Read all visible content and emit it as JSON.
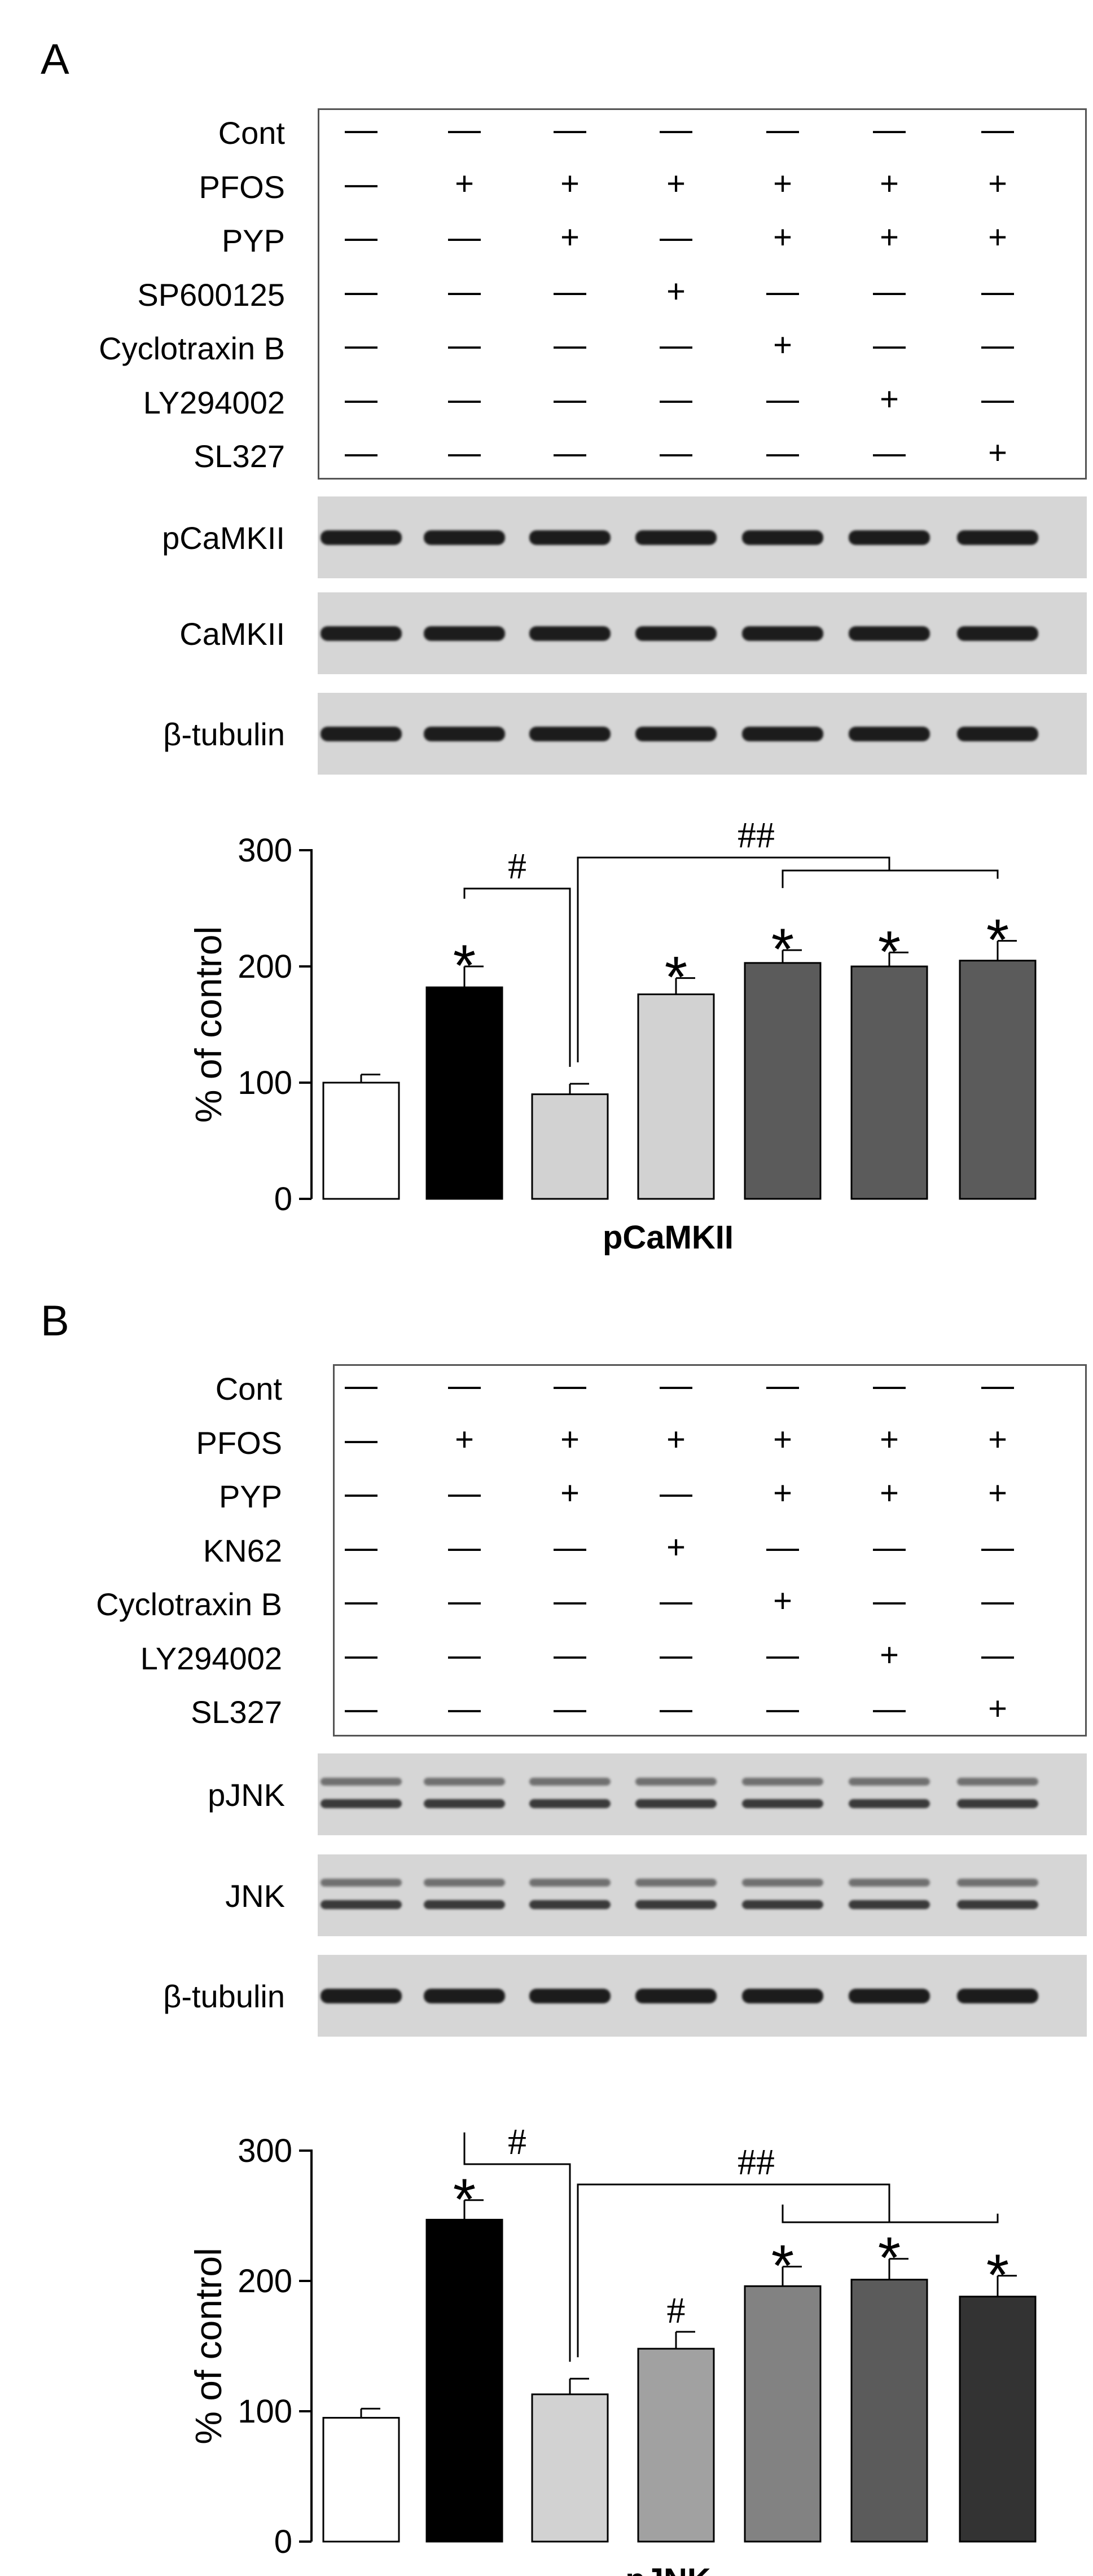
{
  "panels": [
    {
      "letter": "A",
      "conditions": [
        {
          "name": "Cont",
          "marks": [
            "—",
            "—",
            "—",
            "—",
            "—",
            "—",
            "—"
          ]
        },
        {
          "name": "PFOS",
          "marks": [
            "—",
            "+",
            "+",
            "+",
            "+",
            "+",
            "+"
          ]
        },
        {
          "name": "PYP",
          "marks": [
            "—",
            "—",
            "+",
            "—",
            "+",
            "+",
            "+"
          ]
        },
        {
          "name": "SP600125",
          "marks": [
            "—",
            "—",
            "—",
            "+",
            "—",
            "—",
            "—"
          ]
        },
        {
          "name": "Cyclotraxin B",
          "marks": [
            "—",
            "—",
            "—",
            "—",
            "+",
            "—",
            "—"
          ]
        },
        {
          "name": "LY294002",
          "marks": [
            "—",
            "—",
            "—",
            "—",
            "—",
            "+",
            "—"
          ]
        },
        {
          "name": "SL327",
          "marks": [
            "—",
            "—",
            "—",
            "—",
            "—",
            "—",
            "+"
          ]
        }
      ],
      "blots": [
        {
          "label": "pCaMKII",
          "bands": [
            1,
            1,
            1,
            1,
            1,
            1,
            1
          ]
        },
        {
          "label": "CaMKII",
          "bands": [
            1,
            1,
            1,
            1,
            1,
            1,
            1
          ]
        },
        {
          "label": "β-tubulin",
          "bands": [
            1,
            1,
            1,
            1,
            1,
            1,
            1
          ]
        }
      ]
    },
    {
      "letter": "B",
      "conditions": [
        {
          "name": "Cont",
          "marks": [
            "—",
            "—",
            "—",
            "—",
            "—",
            "—",
            "—"
          ]
        },
        {
          "name": "PFOS",
          "marks": [
            "—",
            "+",
            "+",
            "+",
            "+",
            "+",
            "+"
          ]
        },
        {
          "name": "PYP",
          "marks": [
            "—",
            "—",
            "+",
            "—",
            "+",
            "+",
            "+"
          ]
        },
        {
          "name": "KN62",
          "marks": [
            "—",
            "—",
            "—",
            "+",
            "—",
            "—",
            "—"
          ]
        },
        {
          "name": "Cyclotraxin B",
          "marks": [
            "—",
            "—",
            "—",
            "—",
            "+",
            "—",
            "—"
          ]
        },
        {
          "name": "LY294002",
          "marks": [
            "—",
            "—",
            "—",
            "—",
            "—",
            "+",
            "—"
          ]
        },
        {
          "name": "SL327",
          "marks": [
            "—",
            "—",
            "—",
            "—",
            "—",
            "—",
            "+"
          ]
        }
      ],
      "blots": [
        {
          "label": "pJNK",
          "bands": [
            2,
            2,
            2,
            2,
            2,
            2,
            2
          ]
        },
        {
          "label": "JNK",
          "bands": [
            2,
            2,
            2,
            2,
            2,
            2,
            2
          ]
        },
        {
          "label": "β-tubulin",
          "bands": [
            1,
            1,
            1,
            1,
            1,
            1,
            1
          ]
        }
      ]
    }
  ],
  "chart_data": [
    {
      "type": "bar",
      "title": "",
      "xlabel": "pCaMKII",
      "ylabel": "% of control",
      "ylim": [
        0,
        300
      ],
      "yticks": [
        0,
        100,
        200,
        300
      ],
      "categories": [
        "",
        "",
        "",
        "",
        "",
        "",
        ""
      ],
      "values": [
        100,
        182,
        90,
        176,
        203,
        200,
        205
      ],
      "errors": [
        7,
        18,
        9,
        14,
        11,
        12,
        17
      ],
      "bar_colors": [
        "#ffffff",
        "#000000",
        "#d2d2d2",
        "#d2d2d2",
        "#5b5b5b",
        "#5b5b5b",
        "#5b5b5b"
      ],
      "annotations": [
        "",
        "*",
        "",
        "*",
        "*",
        "*",
        "*"
      ],
      "brackets": [
        {
          "label": "#",
          "from": 1,
          "to": 2
        },
        {
          "label": "##",
          "from": 2,
          "to": 5
        },
        {
          "label": "",
          "from": 4,
          "to": 6
        }
      ]
    },
    {
      "type": "bar",
      "title": "",
      "xlabel": "pJNK",
      "ylabel": "% of control",
      "ylim": [
        0,
        300
      ],
      "yticks": [
        0,
        100,
        200,
        300
      ],
      "categories": [
        "",
        "",
        "",
        "",
        "",
        "",
        ""
      ],
      "values": [
        95,
        247,
        113,
        148,
        196,
        201,
        188
      ],
      "errors": [
        7,
        15,
        12,
        13,
        15,
        16,
        16
      ],
      "bar_colors": [
        "#ffffff",
        "#000000",
        "#d2d2d2",
        "#a1a1a1",
        "#828282",
        "#5b5b5b",
        "#333333"
      ],
      "annotations": [
        "",
        "*",
        "",
        "#",
        "*",
        "*",
        "*"
      ],
      "brackets": [
        {
          "label": "#",
          "from": 1,
          "to": 2
        },
        {
          "label": "##",
          "from": 2,
          "to": 5
        },
        {
          "label": "",
          "from": 4,
          "to": 6
        }
      ]
    }
  ]
}
